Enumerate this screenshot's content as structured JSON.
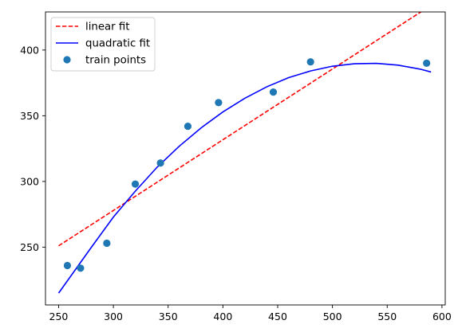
{
  "chart_data": {
    "type": "scatter",
    "title": "",
    "xlabel": "",
    "ylabel": "",
    "xlim": [
      238,
      603
    ],
    "ylim": [
      206,
      429
    ],
    "xticks": [
      250,
      300,
      350,
      400,
      450,
      500,
      550,
      600
    ],
    "yticks": [
      250,
      300,
      350,
      400
    ],
    "grid": false,
    "legend_position": "top-left",
    "series": [
      {
        "name": "linear fit",
        "kind": "line",
        "style": "dashed",
        "color": "#ff0000",
        "x": [
          250,
          590
        ],
        "y": [
          251,
          434
        ]
      },
      {
        "name": "quadratic fit",
        "kind": "line",
        "style": "solid",
        "color": "#0000ff",
        "x": [
          250,
          280,
          300,
          320,
          340,
          360,
          380,
          400,
          420,
          440,
          460,
          480,
          500,
          520,
          540,
          560,
          580,
          590
        ],
        "y": [
          215,
          250,
          272.9,
          292.6,
          310.9,
          326.7,
          340.7,
          352.9,
          363.3,
          372,
          379,
          384.1,
          387.7,
          389.6,
          389.9,
          388.5,
          385.5,
          383.3
        ]
      },
      {
        "name": "train points",
        "kind": "scatter",
        "color": "#1f77b4",
        "x": [
          258,
          270,
          294,
          320,
          343,
          368,
          396,
          446,
          480,
          586
        ],
        "y": [
          236,
          234,
          253,
          298,
          314,
          342,
          360,
          368,
          391,
          390
        ]
      }
    ]
  }
}
